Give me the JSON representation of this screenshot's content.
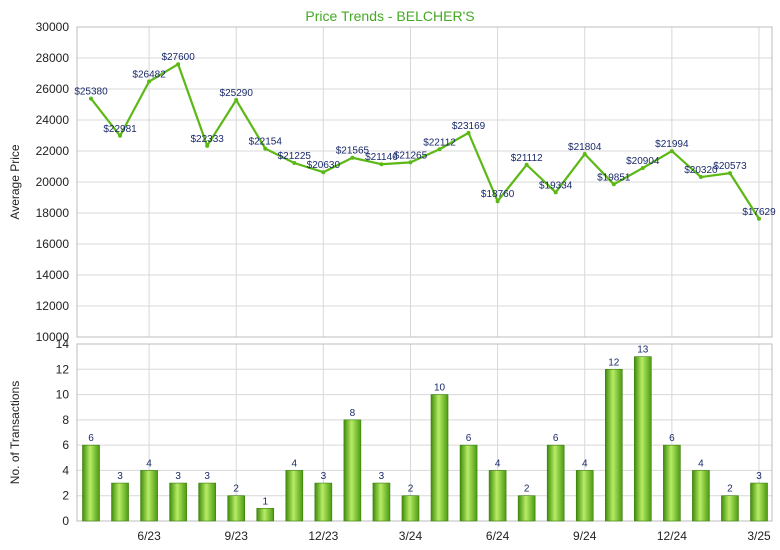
{
  "chart_data": [
    {
      "type": "line",
      "title": "Price Trends - BELCHER'S",
      "xlabel": "",
      "ylabel": "Average Price",
      "ylim": [
        10000,
        30000
      ],
      "yticks": [
        10000,
        12000,
        14000,
        16000,
        18000,
        20000,
        22000,
        24000,
        26000,
        28000,
        30000
      ],
      "grid": true,
      "color": "#5cb814",
      "values": [
        25380,
        22981,
        26482,
        27600,
        22333,
        25290,
        22154,
        21225,
        20630,
        21565,
        21146,
        21265,
        22112,
        23169,
        18760,
        21112,
        19334,
        21804,
        19851,
        20904,
        21994,
        20320,
        20573,
        17629
      ],
      "labels": [
        "$25380",
        "$22981",
        "$26482",
        "$27600",
        "$22333",
        "$25290",
        "$22154",
        "$21225",
        "$20630",
        "$21565",
        "$21146",
        "$21265",
        "$22112",
        "$23169",
        "$18760",
        "$21112",
        "$19334",
        "$21804",
        "$19851",
        "$20904",
        "$21994",
        "$20320",
        "$20573",
        "$17629"
      ]
    },
    {
      "type": "bar",
      "xlabel": "",
      "ylabel": "No. of Transactions",
      "ylim": [
        0,
        14
      ],
      "yticks": [
        0,
        2,
        4,
        6,
        8,
        10,
        12,
        14
      ],
      "grid": true,
      "color": "#66bb22",
      "values": [
        6,
        3,
        4,
        3,
        3,
        2,
        1,
        4,
        3,
        8,
        3,
        2,
        10,
        6,
        4,
        2,
        6,
        4,
        12,
        13,
        6,
        4,
        2,
        3
      ],
      "xticks": [
        {
          "index": 2,
          "label": "6/23"
        },
        {
          "index": 5,
          "label": "9/23"
        },
        {
          "index": 8,
          "label": "12/23"
        },
        {
          "index": 11,
          "label": "3/24"
        },
        {
          "index": 14,
          "label": "6/24"
        },
        {
          "index": 17,
          "label": "9/24"
        },
        {
          "index": 20,
          "label": "12/24"
        },
        {
          "index": 23,
          "label": "3/25"
        }
      ]
    }
  ]
}
